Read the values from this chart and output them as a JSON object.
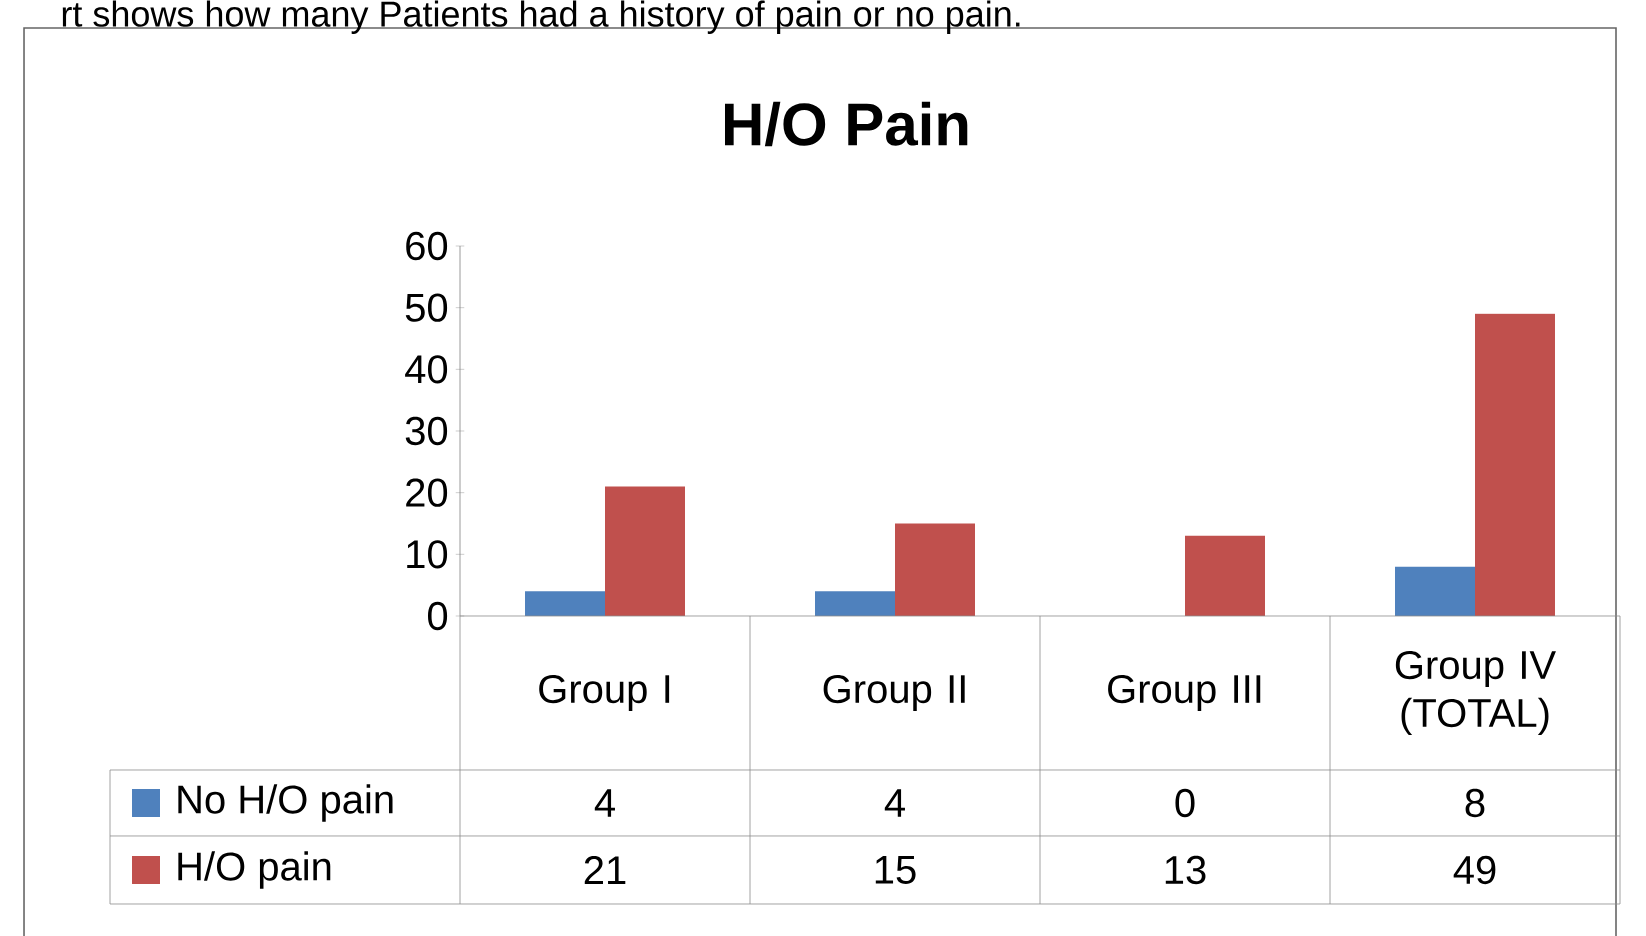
{
  "chart_data": {
    "type": "bar",
    "title": "H/O Pain",
    "annotations": [
      "rt shows how many Patients had a history of pain or no pain."
    ],
    "categories": [
      "Group I",
      "Group II",
      "Group III",
      "Group IV (TOTAL)"
    ],
    "series": [
      {
        "name": "No H/O pain",
        "color": "#4f81bd",
        "values": [
          4,
          4,
          0,
          8
        ]
      },
      {
        "name": "H/O pain",
        "color": "#c0504d",
        "values": [
          21,
          15,
          13,
          49
        ]
      }
    ],
    "ylim": [
      0,
      60
    ],
    "yticks": [
      0,
      10,
      20,
      30,
      40,
      50,
      60
    ],
    "data_labels": true,
    "legend": "bottom left"
  }
}
